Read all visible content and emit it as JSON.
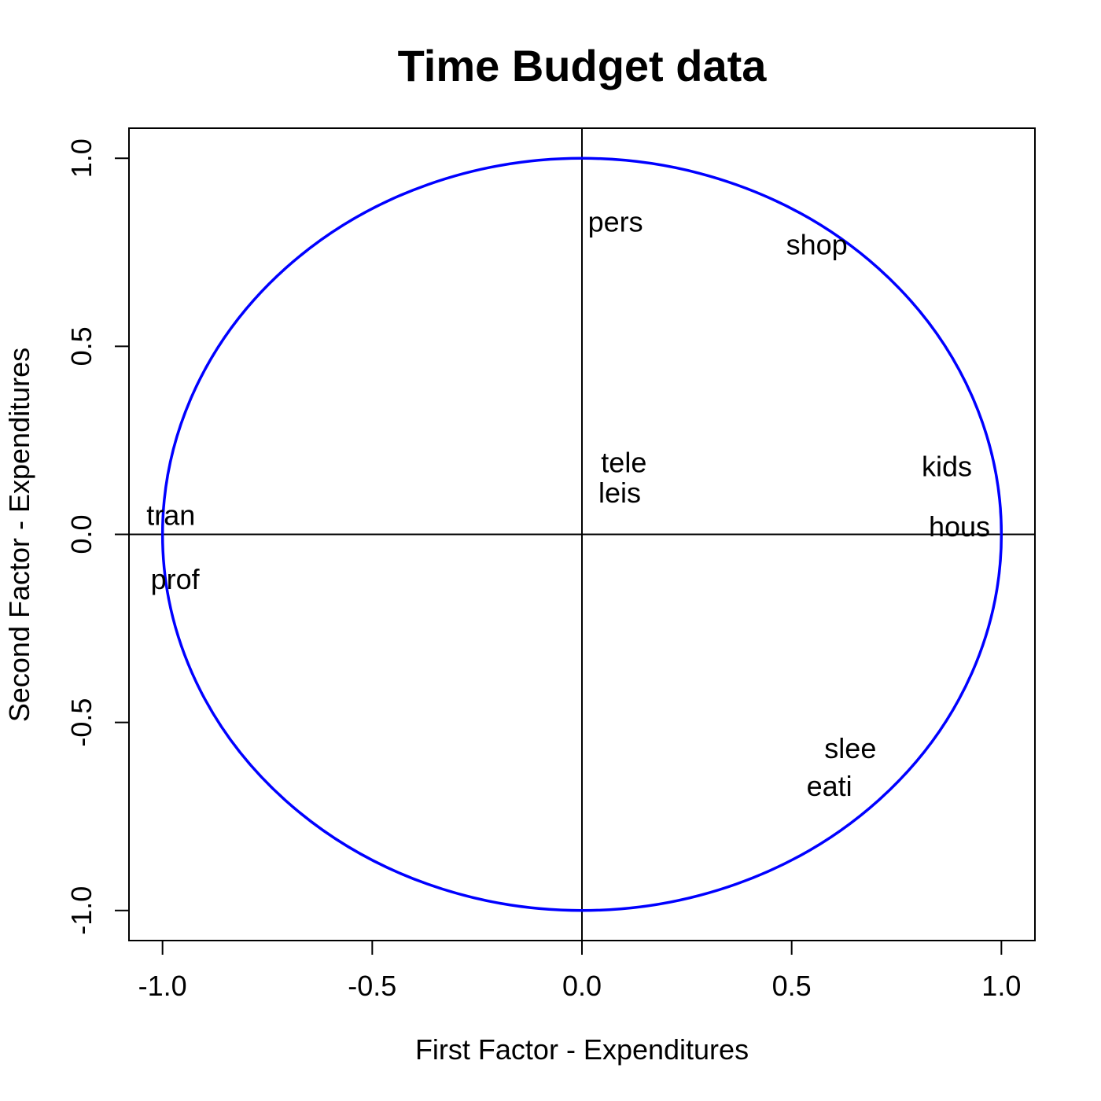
{
  "chart_data": {
    "type": "scatter",
    "title": "Time Budget data",
    "xlabel": "First Factor - Expenditures",
    "ylabel": "Second Factor - Expenditures",
    "xlim": [
      -1.08,
      1.08
    ],
    "ylim": [
      -1.08,
      1.08
    ],
    "x_ticks": [
      -1.0,
      -0.5,
      0.0,
      0.5,
      1.0
    ],
    "x_tick_labels": [
      "-1.0",
      "-0.5",
      "0.0",
      "0.5",
      "1.0"
    ],
    "y_ticks": [
      -1.0,
      -0.5,
      0.0,
      0.5,
      1.0
    ],
    "y_tick_labels": [
      "-1.0",
      "-0.5",
      "0.0",
      "0.5",
      "1.0"
    ],
    "grid": false,
    "reference_lines": {
      "x": 0,
      "y": 0,
      "color": "#000000"
    },
    "circle": {
      "radius": 1,
      "color": "#0000ff"
    },
    "points": [
      {
        "label": "pers",
        "x": 0.08,
        "y": 0.83
      },
      {
        "label": "shop",
        "x": 0.56,
        "y": 0.77
      },
      {
        "label": "tele",
        "x": 0.1,
        "y": 0.19
      },
      {
        "label": "leis",
        "x": 0.09,
        "y": 0.11
      },
      {
        "label": "kids",
        "x": 0.87,
        "y": 0.18
      },
      {
        "label": "hous",
        "x": 0.9,
        "y": 0.02
      },
      {
        "label": "tran",
        "x": -0.98,
        "y": 0.05
      },
      {
        "label": "prof",
        "x": -0.97,
        "y": -0.12
      },
      {
        "label": "slee",
        "x": 0.64,
        "y": -0.57
      },
      {
        "label": "eati",
        "x": 0.59,
        "y": -0.67
      }
    ]
  }
}
